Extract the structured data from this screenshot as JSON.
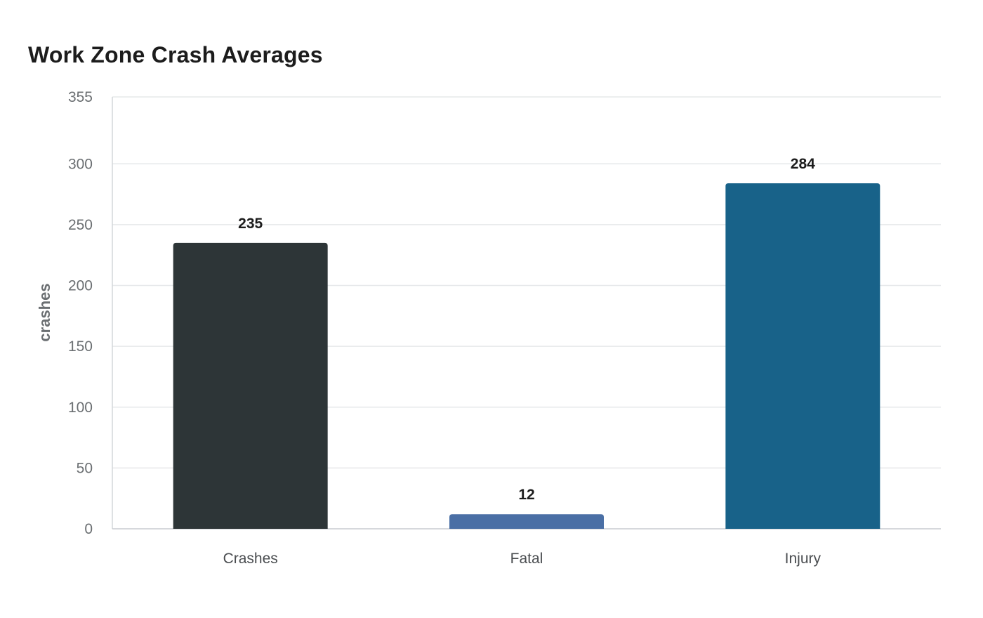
{
  "chart_data": {
    "type": "bar",
    "title": "Work Zone Crash Averages",
    "xlabel": "",
    "ylabel": "crashes",
    "categories": [
      "Crashes",
      "Fatal",
      "Injury"
    ],
    "values": [
      235,
      12,
      284
    ],
    "value_labels": [
      "235",
      "12",
      "284"
    ],
    "bar_colors": [
      "#2d3537",
      "#4a6fa5",
      "#186289"
    ],
    "ylim": [
      0,
      355
    ],
    "yticks": [
      0,
      50,
      100,
      150,
      200,
      250,
      300,
      355
    ],
    "ytick_labels": [
      "0",
      "50",
      "100",
      "150",
      "200",
      "250",
      "300",
      "355"
    ],
    "grid": true,
    "legend": "none"
  }
}
